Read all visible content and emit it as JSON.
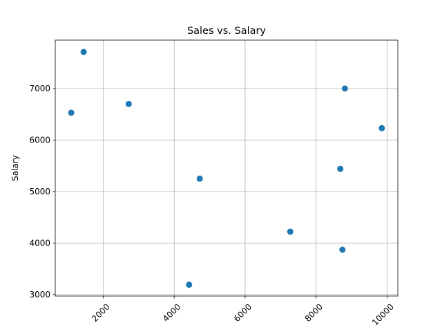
{
  "chart_data": {
    "type": "scatter",
    "title": "Sales vs. Salary",
    "xlabel": "",
    "ylabel": "Salary",
    "xlim": [
      650,
      10300
    ],
    "ylim": [
      2970,
      7940
    ],
    "x_ticks": [
      2000,
      4000,
      6000,
      8000,
      10000
    ],
    "y_ticks": [
      3000,
      4000,
      5000,
      6000,
      7000
    ],
    "x_tick_labels": [
      "2000",
      "4000",
      "6000",
      "8000",
      "10000"
    ],
    "y_tick_labels": [
      "3000",
      "4000",
      "5000",
      "6000",
      "7000"
    ],
    "grid": true,
    "marker_color": "#1f77b4",
    "points": [
      {
        "x": 1450,
        "y": 7710
      },
      {
        "x": 1100,
        "y": 6530
      },
      {
        "x": 2720,
        "y": 6700
      },
      {
        "x": 4720,
        "y": 5250
      },
      {
        "x": 4420,
        "y": 3190
      },
      {
        "x": 7270,
        "y": 4220
      },
      {
        "x": 8810,
        "y": 7000
      },
      {
        "x": 9850,
        "y": 6230
      },
      {
        "x": 8680,
        "y": 5440
      },
      {
        "x": 8740,
        "y": 3870
      }
    ]
  }
}
